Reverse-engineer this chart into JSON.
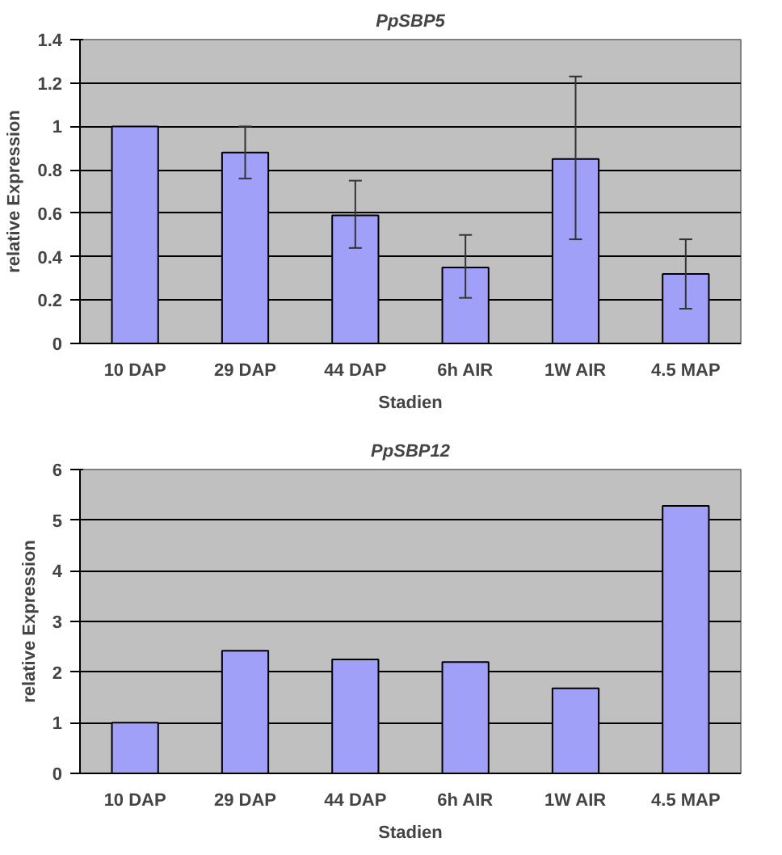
{
  "chart_data": [
    {
      "type": "bar",
      "title": "PpSBP5",
      "xlabel": "Stadien",
      "ylabel": "relative Expression",
      "categories": [
        "10 DAP",
        "29 DAP",
        "44 DAP",
        "6h AIR",
        "1W AIR",
        "4.5 MAP"
      ],
      "values": [
        1.0,
        0.88,
        0.59,
        0.35,
        0.85,
        0.32
      ],
      "errors": [
        null,
        [
          0.76,
          1.0
        ],
        [
          0.44,
          0.75
        ],
        [
          0.21,
          0.5
        ],
        [
          0.48,
          1.23
        ],
        [
          0.16,
          0.48
        ]
      ],
      "color": "#a0a0f8",
      "ylim": [
        0,
        1.4
      ],
      "yticks": [
        0,
        0.2,
        0.4,
        0.6,
        0.8,
        1,
        1.2,
        1.4
      ],
      "grid": "y"
    },
    {
      "type": "bar",
      "title": "PpSBP12",
      "xlabel": "Stadien",
      "ylabel": "relative Expression",
      "categories": [
        "10 DAP",
        "29 DAP",
        "44 DAP",
        "6h AIR",
        "1W AIR",
        "4.5 MAP"
      ],
      "values": [
        1.0,
        2.42,
        2.25,
        2.2,
        1.68,
        5.28
      ],
      "color": "#a0a0f8",
      "ylim": [
        0,
        6
      ],
      "yticks": [
        0,
        1,
        2,
        3,
        4,
        5,
        6
      ],
      "grid": "y"
    }
  ]
}
